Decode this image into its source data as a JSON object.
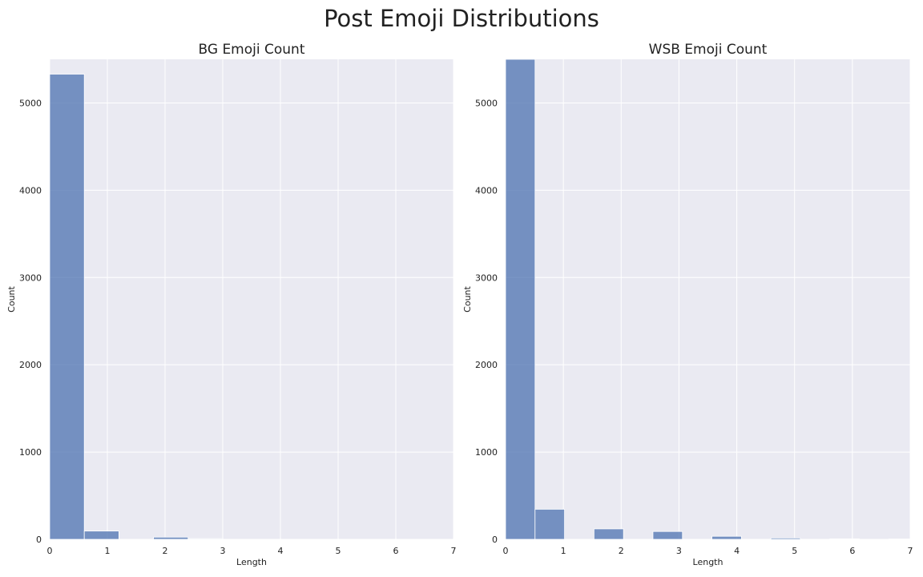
{
  "figure": {
    "title": "Post Emoji Distributions"
  },
  "colors": {
    "bar": "#4c72b0",
    "panel_bg": "#eaeaf2",
    "grid": "#ffffff"
  },
  "chart_data": [
    {
      "type": "bar",
      "title": "BG Emoji Count",
      "xlabel": "Length",
      "ylabel": "Count",
      "xlim": [
        0,
        7
      ],
      "ylim": [
        0,
        5500
      ],
      "xticks": [
        0,
        1,
        2,
        3,
        4,
        5,
        6,
        7
      ],
      "yticks": [
        0,
        1000,
        2000,
        3000,
        4000,
        5000
      ],
      "grid": true,
      "bins": [
        {
          "x0": 0.0,
          "x1": 0.6,
          "count": 5330
        },
        {
          "x0": 0.6,
          "x1": 1.2,
          "count": 95
        },
        {
          "x0": 1.8,
          "x1": 2.4,
          "count": 25
        },
        {
          "x0": 2.4,
          "x1": 3.0,
          "count": 8
        }
      ]
    },
    {
      "type": "bar",
      "title": "WSB Emoji Count",
      "xlabel": "Length",
      "ylabel": "Count",
      "xlim": [
        0,
        7
      ],
      "ylim": [
        0,
        5500
      ],
      "xticks": [
        0,
        1,
        2,
        3,
        4,
        5,
        6,
        7
      ],
      "yticks": [
        0,
        1000,
        2000,
        3000,
        4000,
        5000
      ],
      "grid": true,
      "bins": [
        {
          "x0": 0.0,
          "x1": 0.51,
          "count": 5500
        },
        {
          "x0": 0.51,
          "x1": 1.02,
          "count": 345
        },
        {
          "x0": 1.53,
          "x1": 2.04,
          "count": 120
        },
        {
          "x0": 2.55,
          "x1": 3.06,
          "count": 90
        },
        {
          "x0": 3.57,
          "x1": 4.08,
          "count": 35
        },
        {
          "x0": 4.59,
          "x1": 5.1,
          "count": 15
        },
        {
          "x0": 5.61,
          "x1": 6.12,
          "count": 6
        },
        {
          "x0": 6.63,
          "x1": 7.0,
          "count": 4
        }
      ]
    }
  ]
}
